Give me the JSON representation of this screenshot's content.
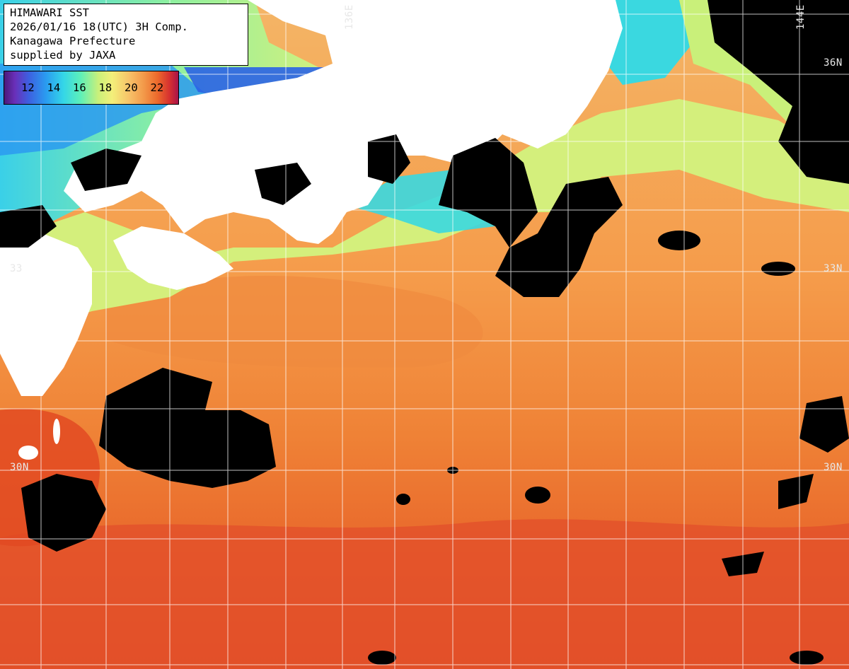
{
  "title_box": {
    "line1": "HIMAWARI SST",
    "line2": "2026/01/16 18(UTC) 3H Comp.",
    "line3": "Kanagawa Prefecture",
    "line4": "supplied by JAXA"
  },
  "legend": {
    "ticks": [
      "12",
      "14",
      "16",
      "18",
      "20",
      "22"
    ]
  },
  "axis_labels": {
    "lon_136": "136E",
    "lon_144": "144E",
    "lat_36_right": "36N",
    "lat_33_left": "33",
    "lat_33_right": "33N",
    "lat_30_left": "30N",
    "lat_30_right": "30N"
  },
  "colors": {
    "land": "#ffffff",
    "no_data": "#000000",
    "warm_water": "#e8641e",
    "warmest_water": "#d63a18",
    "mid_water": "#f5a252",
    "cool_water": "#d8f07c",
    "cold_water": "#3ad8e0",
    "coldest_water": "#2e7ff0",
    "grid": "#ffffff"
  }
}
